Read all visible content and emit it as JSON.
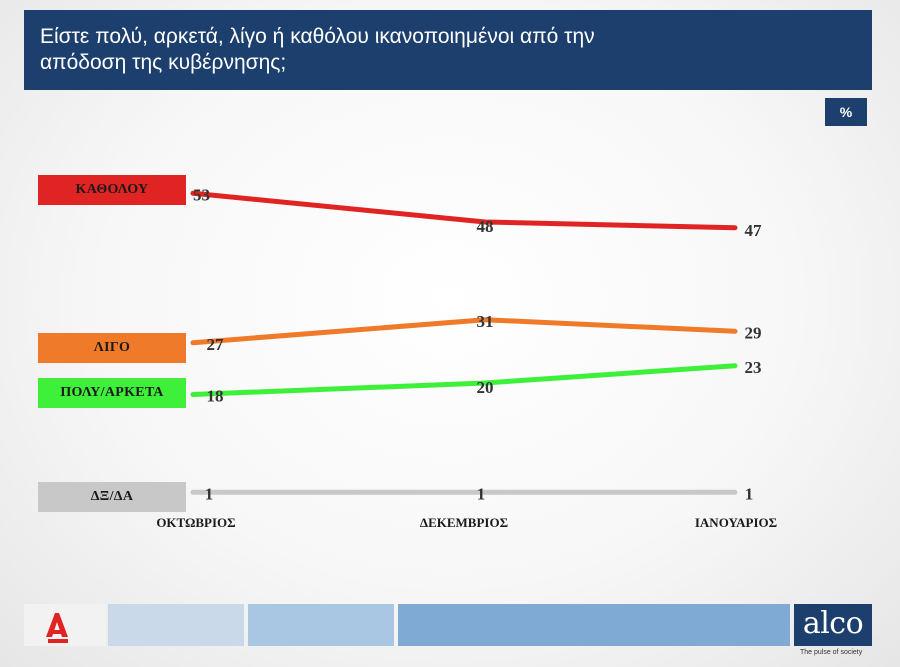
{
  "header": {
    "title": "Είστε πολύ, αρκετά, λίγο ή καθόλου ικανοποιημένοι από την απόδοση της κυβέρνησης;",
    "unit": "%"
  },
  "colors": {
    "title_bar": "#1c3f6e",
    "kathólou": "#e02424",
    "ligo": "#ef7a2a",
    "poly_arketa": "#3ef03a",
    "dxda": "#c8c8c8"
  },
  "chart_data": {
    "type": "line",
    "categories": [
      "ΟΚΤΩΒΡΙΟΣ",
      "ΔΕΚΕΜΒΡΙΟΣ",
      "ΙΑΝΟΥΑΡΙΟΣ"
    ],
    "series": [
      {
        "name": "ΚΑΘΟΛΟΥ",
        "values": [
          53,
          48,
          47
        ],
        "color": "#e02424"
      },
      {
        "name": "ΛΙΓΟ",
        "values": [
          27,
          31,
          29
        ],
        "color": "#ef7a2a"
      },
      {
        "name": "ΠΟΛΥ/ΑΡΚΕΤΑ",
        "values": [
          18,
          20,
          23
        ],
        "color": "#3ef03a"
      },
      {
        "name": "ΔΞ/ΔΑ",
        "values": [
          1,
          1,
          1
        ],
        "color": "#c8c8c8"
      }
    ],
    "ylim": [
      0,
      60
    ],
    "grid": false,
    "legend": "left"
  },
  "footer": {
    "brand": "alco",
    "tagline": "The pulse of society",
    "left_logo_icon": "alpha-news-logo-icon"
  }
}
